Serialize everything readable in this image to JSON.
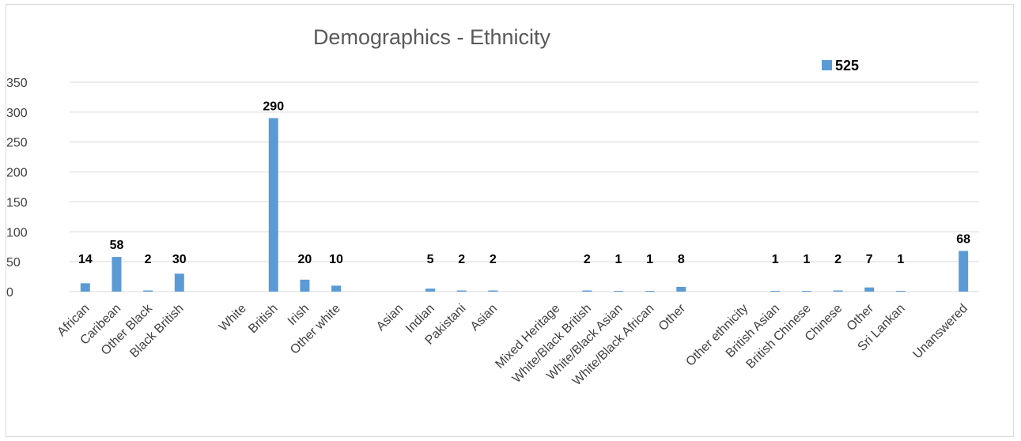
{
  "chart_data": {
    "type": "bar",
    "title": "Demographics - Ethnicity",
    "xlabel": "",
    "ylabel": "",
    "ylim": [
      0,
      350
    ],
    "yticks": [
      0,
      50,
      100,
      150,
      200,
      250,
      300,
      350
    ],
    "grid": true,
    "legend_position": "top-right",
    "bar_color": "#5b9bd5",
    "categories": [
      "African",
      "Caribean",
      "Other Black",
      "Black British",
      "",
      "White",
      "British",
      "Irish",
      "Other white",
      "",
      "Asian",
      "Indian",
      "Pakistani",
      "Asian",
      "",
      "Mixed Heritage",
      "White/Black British",
      "White/Black Asian",
      "White/Black African",
      "Other",
      "",
      "Other ethnicity",
      "British Asian",
      "British Chinese",
      "Chinese",
      "Other",
      "Sri Lankan",
      "",
      "Unanswered"
    ],
    "series": [
      {
        "name": "525",
        "values": [
          14,
          58,
          2,
          30,
          null,
          null,
          290,
          20,
          10,
          null,
          null,
          5,
          2,
          2,
          null,
          null,
          2,
          1,
          1,
          8,
          null,
          null,
          1,
          1,
          2,
          7,
          1,
          null,
          68
        ],
        "labels": [
          "14",
          "58",
          "2",
          "30",
          null,
          null,
          "290",
          "20",
          "10",
          null,
          null,
          "5",
          "2",
          "2",
          null,
          null,
          "2",
          "1",
          "1",
          "8",
          null,
          null,
          "1",
          "1",
          "2",
          "7",
          "1",
          null,
          "68"
        ]
      }
    ]
  }
}
